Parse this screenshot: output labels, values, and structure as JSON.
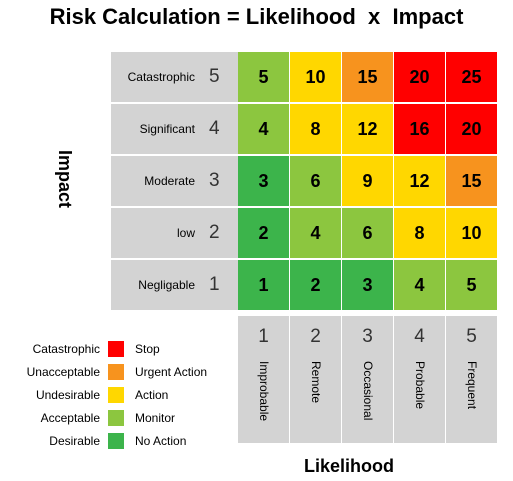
{
  "title": "Risk Calculation = Likelihood  x  Impact",
  "y_axis_label": "Impact",
  "x_axis_label": "Likelihood",
  "impact_rows": [
    {
      "name": "Catastrophic",
      "number": "5"
    },
    {
      "name": "Significant",
      "number": "4"
    },
    {
      "name": "Moderate",
      "number": "3"
    },
    {
      "name": "low",
      "number": "2"
    },
    {
      "name": "Negligable",
      "number": "1"
    }
  ],
  "likelihood_cols": [
    {
      "name": "Improbable",
      "number": "1"
    },
    {
      "name": "Remote",
      "number": "2"
    },
    {
      "name": "Occasional",
      "number": "3"
    },
    {
      "name": "Probable",
      "number": "4"
    },
    {
      "name": "Frequent",
      "number": "5"
    }
  ],
  "matrix": [
    [
      {
        "v": "5",
        "c": "#8cc63f"
      },
      {
        "v": "10",
        "c": "#ffd700"
      },
      {
        "v": "15",
        "c": "#f7931e"
      },
      {
        "v": "20",
        "c": "#ff0000"
      },
      {
        "v": "25",
        "c": "#ff0000"
      }
    ],
    [
      {
        "v": "4",
        "c": "#8cc63f"
      },
      {
        "v": "8",
        "c": "#ffd700"
      },
      {
        "v": "12",
        "c": "#ffd700"
      },
      {
        "v": "16",
        "c": "#ff0000"
      },
      {
        "v": "20",
        "c": "#ff0000"
      }
    ],
    [
      {
        "v": "3",
        "c": "#3cb44b"
      },
      {
        "v": "6",
        "c": "#8cc63f"
      },
      {
        "v": "9",
        "c": "#ffd700"
      },
      {
        "v": "12",
        "c": "#ffd700"
      },
      {
        "v": "15",
        "c": "#f7931e"
      }
    ],
    [
      {
        "v": "2",
        "c": "#3cb44b"
      },
      {
        "v": "4",
        "c": "#8cc63f"
      },
      {
        "v": "6",
        "c": "#8cc63f"
      },
      {
        "v": "8",
        "c": "#ffd700"
      },
      {
        "v": "10",
        "c": "#ffd700"
      }
    ],
    [
      {
        "v": "1",
        "c": "#3cb44b"
      },
      {
        "v": "2",
        "c": "#3cb44b"
      },
      {
        "v": "3",
        "c": "#3cb44b"
      },
      {
        "v": "4",
        "c": "#8cc63f"
      },
      {
        "v": "5",
        "c": "#8cc63f"
      }
    ]
  ],
  "legend": [
    {
      "label": "Catastrophic",
      "action": "Stop",
      "color": "#ff0000"
    },
    {
      "label": "Unacceptable",
      "action": "Urgent Action",
      "color": "#f7931e"
    },
    {
      "label": "Undesirable",
      "action": "Action",
      "color": "#ffd700"
    },
    {
      "label": "Acceptable",
      "action": "Monitor",
      "color": "#8cc63f"
    },
    {
      "label": "Desirable",
      "action": "No Action",
      "color": "#3cb44b"
    }
  ]
}
